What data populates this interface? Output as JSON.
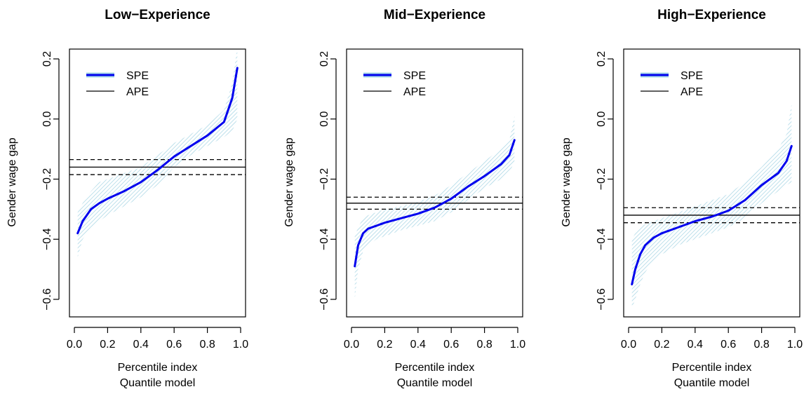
{
  "chart_data": [
    {
      "type": "line",
      "title": "Low−Experience",
      "xlabel": "Percentile index",
      "xlabel2": "Quantile model",
      "ylabel": "Gender wage gap",
      "xlim": [
        0.0,
        1.0
      ],
      "ylim": [
        -0.6,
        0.2
      ],
      "x_ticks": [
        "0.0",
        "0.2",
        "0.4",
        "0.6",
        "0.8",
        "1.0"
      ],
      "y_ticks": [
        "−0.6",
        "−0.4",
        "−0.2",
        "0.0",
        "0.2"
      ],
      "legend": [
        "SPE",
        "APE"
      ],
      "legend_position": "top-left",
      "series": [
        {
          "name": "SPE",
          "x": [
            0.02,
            0.05,
            0.1,
            0.15,
            0.2,
            0.3,
            0.4,
            0.5,
            0.6,
            0.7,
            0.8,
            0.9,
            0.95,
            0.98
          ],
          "values": [
            -0.38,
            -0.34,
            -0.3,
            -0.28,
            -0.265,
            -0.24,
            -0.21,
            -0.17,
            -0.125,
            -0.09,
            -0.055,
            -0.01,
            0.07,
            0.17
          ],
          "lower": [
            -0.46,
            -0.4,
            -0.36,
            -0.34,
            -0.32,
            -0.29,
            -0.26,
            -0.22,
            -0.16,
            -0.12,
            -0.09,
            -0.06,
            -0.04,
            0.0
          ],
          "upper": [
            -0.31,
            -0.28,
            -0.24,
            -0.21,
            -0.2,
            -0.18,
            -0.16,
            -0.12,
            -0.08,
            -0.05,
            -0.02,
            0.03,
            0.12,
            0.24
          ]
        },
        {
          "name": "APE",
          "value": -0.16,
          "ci": [
            -0.185,
            -0.135
          ]
        }
      ]
    },
    {
      "type": "line",
      "title": "Mid−Experience",
      "xlabel": "Percentile index",
      "xlabel2": "Quantile model",
      "ylabel": "Gender wage gap",
      "xlim": [
        0.0,
        1.0
      ],
      "ylim": [
        -0.6,
        0.2
      ],
      "x_ticks": [
        "0.0",
        "0.2",
        "0.4",
        "0.6",
        "0.8",
        "1.0"
      ],
      "y_ticks": [
        "−0.6",
        "−0.4",
        "−0.2",
        "0.0",
        "0.2"
      ],
      "legend": [
        "SPE",
        "APE"
      ],
      "legend_position": "top-left",
      "series": [
        {
          "name": "SPE",
          "x": [
            0.02,
            0.04,
            0.07,
            0.1,
            0.15,
            0.2,
            0.3,
            0.4,
            0.5,
            0.6,
            0.7,
            0.8,
            0.9,
            0.95,
            0.98
          ],
          "values": [
            -0.49,
            -0.42,
            -0.38,
            -0.365,
            -0.355,
            -0.345,
            -0.33,
            -0.315,
            -0.295,
            -0.265,
            -0.225,
            -0.19,
            -0.15,
            -0.12,
            -0.07
          ],
          "lower": [
            -0.6,
            -0.5,
            -0.44,
            -0.42,
            -0.4,
            -0.39,
            -0.37,
            -0.355,
            -0.34,
            -0.31,
            -0.27,
            -0.23,
            -0.2,
            -0.18,
            -0.14
          ],
          "upper": [
            -0.39,
            -0.36,
            -0.33,
            -0.32,
            -0.31,
            -0.3,
            -0.29,
            -0.275,
            -0.255,
            -0.22,
            -0.18,
            -0.14,
            -0.1,
            -0.07,
            0.01
          ]
        },
        {
          "name": "APE",
          "value": -0.28,
          "ci": [
            -0.3,
            -0.26
          ]
        }
      ]
    },
    {
      "type": "line",
      "title": "High−Experience",
      "xlabel": "Percentile index",
      "xlabel2": "Quantile model",
      "ylabel": "Gender wage gap",
      "xlim": [
        0.0,
        1.0
      ],
      "ylim": [
        -0.6,
        0.2
      ],
      "x_ticks": [
        "0.0",
        "0.2",
        "0.4",
        "0.6",
        "0.8",
        "1.0"
      ],
      "y_ticks": [
        "−0.6",
        "−0.4",
        "−0.2",
        "0.0",
        "0.2"
      ],
      "legend": [
        "SPE",
        "APE"
      ],
      "legend_position": "top-left",
      "series": [
        {
          "name": "SPE",
          "x": [
            0.02,
            0.04,
            0.07,
            0.1,
            0.15,
            0.2,
            0.3,
            0.4,
            0.5,
            0.6,
            0.7,
            0.8,
            0.9,
            0.95,
            0.98
          ],
          "values": [
            -0.55,
            -0.5,
            -0.45,
            -0.42,
            -0.395,
            -0.38,
            -0.36,
            -0.34,
            -0.325,
            -0.305,
            -0.27,
            -0.22,
            -0.18,
            -0.14,
            -0.09
          ],
          "lower": [
            -0.63,
            -0.6,
            -0.55,
            -0.51,
            -0.47,
            -0.45,
            -0.42,
            -0.4,
            -0.38,
            -0.36,
            -0.33,
            -0.28,
            -0.24,
            -0.22,
            -0.21
          ],
          "upper": [
            -0.4,
            -0.38,
            -0.36,
            -0.35,
            -0.34,
            -0.33,
            -0.31,
            -0.29,
            -0.27,
            -0.25,
            -0.21,
            -0.16,
            -0.1,
            -0.05,
            0.05
          ]
        },
        {
          "name": "APE",
          "value": -0.32,
          "ci": [
            -0.345,
            -0.295
          ]
        }
      ]
    }
  ],
  "colors": {
    "spe_line": "#0000ee",
    "spe_legend_glow": "#a8d8e6",
    "band": "#add8e6",
    "ape_line": "#000000",
    "axes": "#000000",
    "background": "#ffffff"
  }
}
